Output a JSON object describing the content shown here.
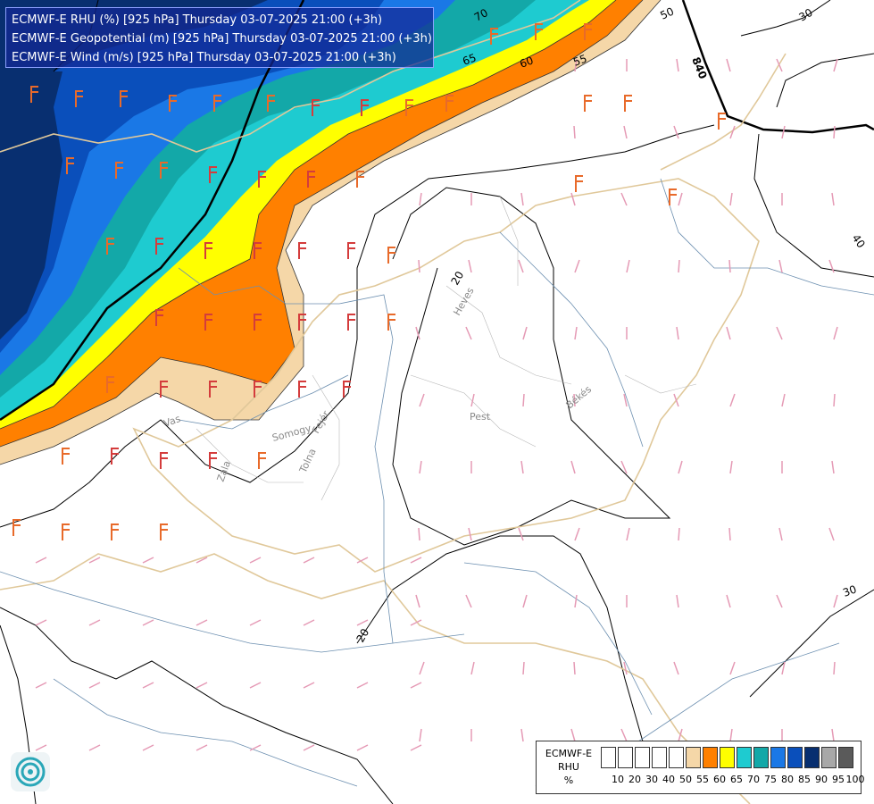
{
  "header": {
    "lines": [
      "ECMWF-E RHU (%) [925 hPa] Thursday 03-07-2025 21:00 (+3h)",
      "ECMWF-E Geopotential (m) [925 hPa] Thursday 03-07-2025 21:00 (+3h)",
      "ECMWF-E Wind (m/s) [925 hPa] Thursday 03-07-2025 21:00 (+3h)"
    ]
  },
  "legend": {
    "title_lines": [
      "ECMWF-E",
      "RHU",
      "%"
    ],
    "ticks": [
      "10",
      "20",
      "30",
      "40",
      "50",
      "55",
      "60",
      "65",
      "70",
      "75",
      "80",
      "85",
      "90",
      "95",
      "100"
    ],
    "colors": [
      "#ffffff",
      "#ffffff",
      "#ffffff",
      "#ffffff",
      "#ffffff",
      "#f5d7a8",
      "#ff8000",
      "#ffff00",
      "#1ecbd0",
      "#13a8a8",
      "#1a78e6",
      "#0a4fbb",
      "#082f70",
      "#a8a8a8",
      "#5a5a5a"
    ]
  },
  "contour_labels": {
    "rhu": [
      "70",
      "65",
      "60",
      "55",
      "50"
    ],
    "wind": [
      "20",
      "20",
      "30",
      "40",
      "30"
    ],
    "geopotential": [
      "840"
    ]
  },
  "region_labels": [
    "Heves",
    "Pest",
    "Békés",
    "Vas",
    "Somogy",
    "Fejér",
    "Tolna",
    "Zala"
  ],
  "logo": {
    "icon": "ecmwf-swirl-logo"
  }
}
